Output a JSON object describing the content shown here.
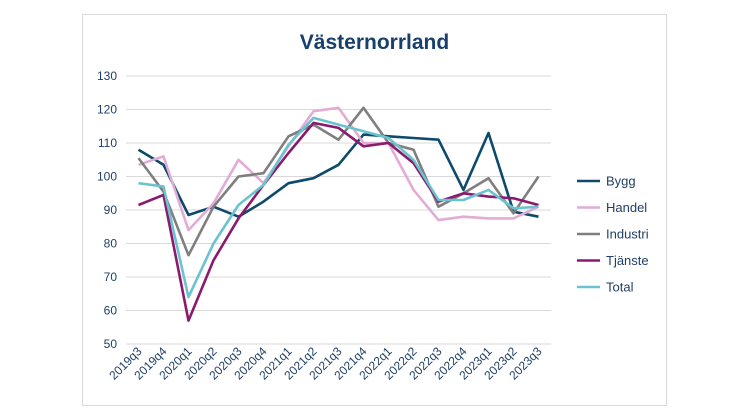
{
  "chart_data": {
    "type": "line",
    "title": "Västernorrland",
    "xlabel": "",
    "ylabel": "",
    "ylim": [
      50,
      130
    ],
    "yticks": [
      50,
      60,
      70,
      80,
      90,
      100,
      110,
      120,
      130
    ],
    "grid": true,
    "legend_position": "right",
    "categories": [
      "2019q3",
      "2019q4",
      "2020q1",
      "2020q2",
      "2020q3",
      "2020q4",
      "2021q1",
      "2021q2",
      "2021q3",
      "2021q4",
      "2022q1",
      "2022q2",
      "2022q3",
      "2022q4",
      "2023q1",
      "2023q2",
      "2023q3"
    ],
    "series": [
      {
        "name": "Bygg",
        "color": "#0e4a6b",
        "values": [
          108,
          103.5,
          88.5,
          91,
          88,
          92.5,
          98,
          99.5,
          103.5,
          112.5,
          112,
          111.5,
          111,
          96,
          113,
          89.5,
          88
        ]
      },
      {
        "name": "Handel",
        "color": "#e3acd6",
        "values": [
          103.5,
          106,
          84,
          92,
          105,
          98,
          109,
          119.5,
          120.5,
          110,
          110,
          96,
          87,
          88,
          87.5,
          87.5,
          91
        ]
      },
      {
        "name": "Industri",
        "color": "#7f7f7f",
        "values": [
          105.5,
          95.5,
          76.5,
          91,
          100,
          101,
          112,
          115.5,
          111,
          120.5,
          110,
          108,
          91,
          95,
          99.5,
          89,
          100
        ]
      },
      {
        "name": "Tjänste",
        "color": "#8a1a6e",
        "values": [
          91.5,
          94.5,
          57,
          75,
          87.5,
          97.5,
          107,
          116,
          114.5,
          109,
          110,
          104,
          92.5,
          95,
          94,
          93.5,
          91.5
        ]
      },
      {
        "name": "Total",
        "color": "#6cc3cf",
        "values": [
          98,
          97,
          64,
          80,
          91.5,
          97.5,
          109.5,
          117.5,
          115.5,
          113.5,
          111.5,
          105,
          93,
          93,
          96,
          90.5,
          91
        ]
      }
    ]
  }
}
